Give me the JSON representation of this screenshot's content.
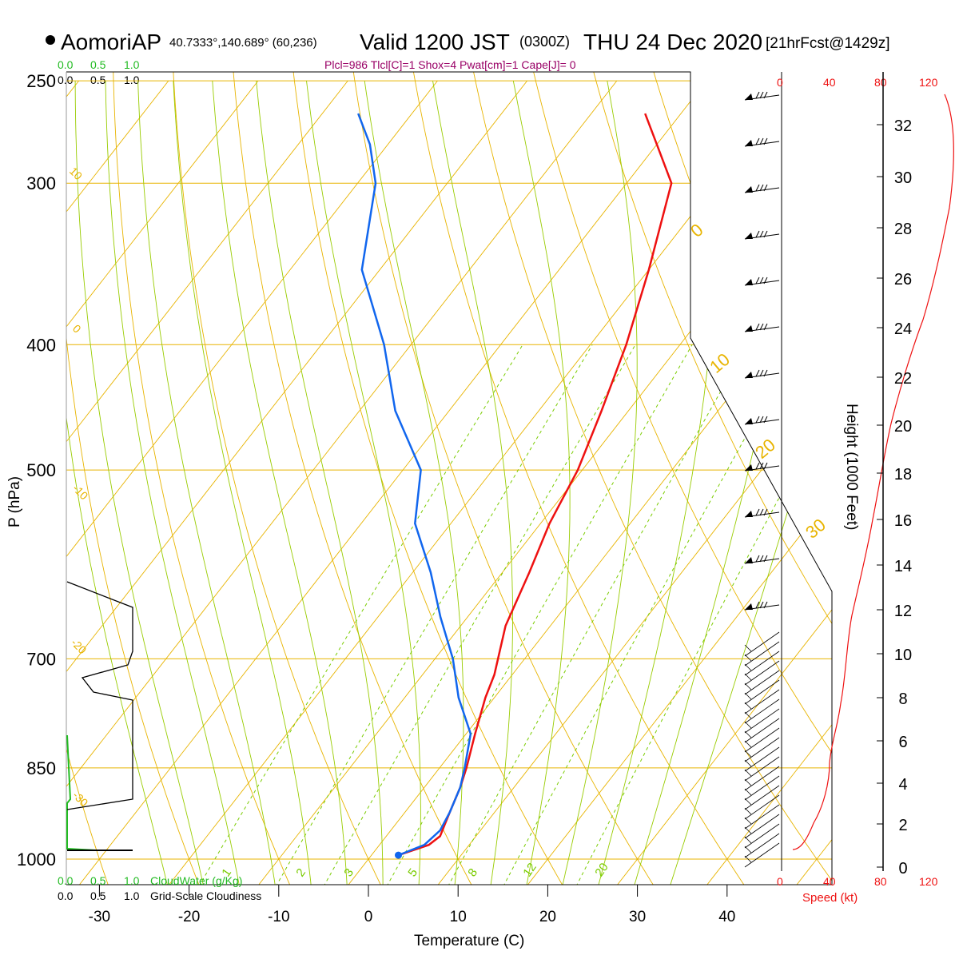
{
  "header": {
    "station": "AomoriAP",
    "coords": "40.7333°,140.689° (60,236)",
    "valid_prefix": "Valid 1200 JST",
    "utc": "(0300Z)",
    "date": "THU 24 Dec 2020",
    "forecast": "[21hrFcst@1429z]"
  },
  "params_line": "Plcl=986 Tlcl[C]=1 Shox=4 Pwat[cm]=1 Cape[J]= 0",
  "colors": {
    "isotherm": "#e8b400",
    "dry_adiabat": "#e8b400",
    "moist_adiabat": "#99cc00",
    "mixing_ratio": "#7acc00",
    "temperature": "#ee1111",
    "dewpoint": "#1166ee",
    "cloudwater": "#22bb22",
    "cloudiness": "#000000",
    "params": "#990066",
    "speed": "#ee1111"
  },
  "top_scale": {
    "green": [
      "0.0",
      "0.5",
      "1.0"
    ],
    "black": [
      "0.0",
      "0.5",
      "1.0"
    ]
  },
  "bottom_scale": {
    "green": [
      "0.0",
      "0.5",
      "1.0"
    ],
    "green_label": "CloudWater (g/Kg)",
    "black": [
      "0.0",
      "0.5",
      "1.0"
    ],
    "black_label": "Grid-Scale Cloudiness"
  },
  "speed_axis": {
    "ticks": [
      "0",
      "40",
      "80",
      "120"
    ],
    "label": "Speed (kt)"
  },
  "chart_data": {
    "type": "line",
    "skewt": true,
    "xlabel": "Temperature (C)",
    "ylabel": "P (hPa)",
    "y2label": "Height (1000 Feet)",
    "xlim": [
      -35,
      45
    ],
    "ylim": [
      1040,
      250
    ],
    "x_ticks": [
      -30,
      -20,
      -10,
      0,
      10,
      20,
      30,
      40
    ],
    "x_tick_labels": [
      "-30",
      "-20",
      "-10",
      "0",
      "10",
      "20",
      "30",
      "40"
    ],
    "pressure_levels": [
      1000,
      850,
      700,
      500,
      400,
      300,
      250
    ],
    "pressure_labels": [
      "1000",
      "850",
      "700",
      "500",
      "400",
      "300",
      "250"
    ],
    "height_ticks": [
      "0",
      "2",
      "4",
      "6",
      "8",
      "10",
      "12",
      "14",
      "16",
      "18",
      "20",
      "22",
      "24",
      "26",
      "28",
      "30",
      "32"
    ],
    "mixing_ratio_labels": [
      "1",
      "2",
      "3",
      "5",
      "8",
      "12",
      "20"
    ],
    "potential_temp_labels": [
      "10",
      "0",
      "-10",
      "-20",
      "-30",
      "0",
      "10",
      "20",
      "30"
    ],
    "series": [
      {
        "name": "Temperature",
        "points": [
          [
            3,
            993
          ],
          [
            5.5,
            975
          ],
          [
            6,
            960
          ],
          [
            5.5,
            940
          ],
          [
            5,
            920
          ],
          [
            4,
            880
          ],
          [
            3,
            850
          ],
          [
            1,
            800
          ],
          [
            -1,
            750
          ],
          [
            -2,
            720
          ],
          [
            -5,
            660
          ],
          [
            -7,
            600
          ],
          [
            -9,
            550
          ],
          [
            -10.5,
            500
          ],
          [
            -13,
            450
          ],
          [
            -16,
            400
          ],
          [
            -20,
            350
          ],
          [
            -25,
            300
          ],
          [
            -30,
            280
          ],
          [
            -34,
            265
          ]
        ]
      },
      {
        "name": "Dewpoint",
        "points": [
          [
            3,
            993
          ],
          [
            5,
            975
          ],
          [
            5.5,
            950
          ],
          [
            5,
            920
          ],
          [
            4,
            880
          ],
          [
            2.8,
            850
          ],
          [
            0.5,
            800
          ],
          [
            -4,
            750
          ],
          [
            -8,
            700
          ],
          [
            -13,
            650
          ],
          [
            -18,
            600
          ],
          [
            -24,
            550
          ],
          [
            -28,
            500
          ],
          [
            -36,
            450
          ],
          [
            -43,
            400
          ],
          [
            -52,
            350
          ],
          [
            -58,
            300
          ],
          [
            -62,
            280
          ],
          [
            -66,
            265
          ]
        ]
      }
    ]
  }
}
